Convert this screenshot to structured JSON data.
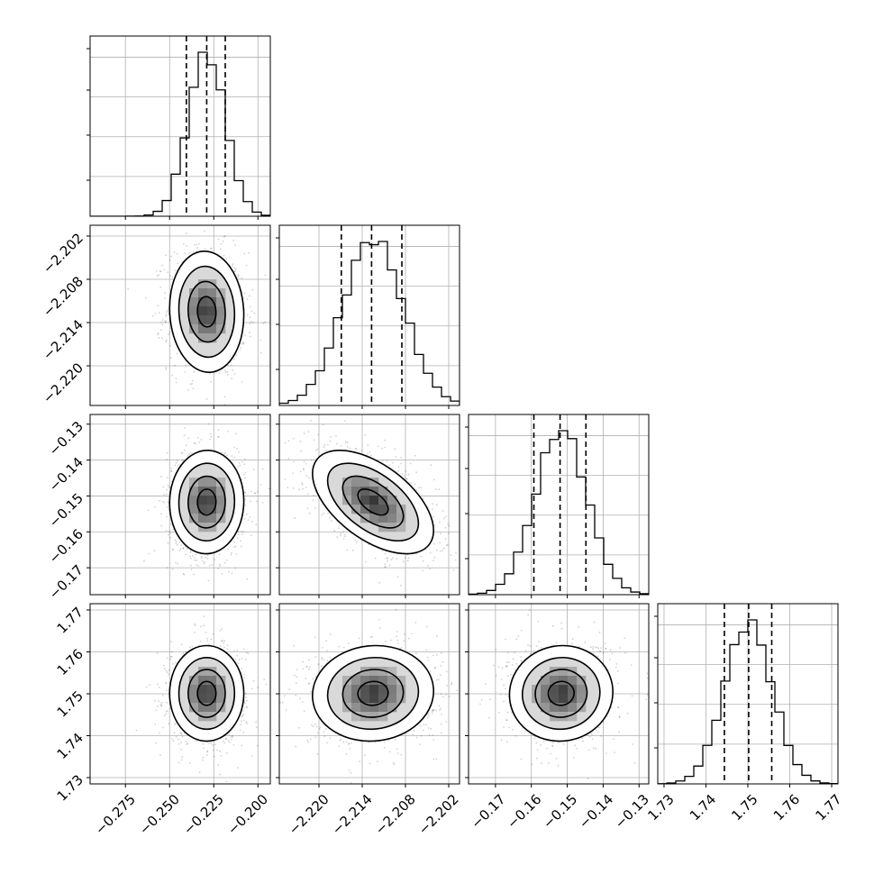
{
  "chart_data": {
    "type": "corner",
    "colors": {
      "ink": "#000000",
      "grid": "#b0b0b0",
      "background": "#ffffff"
    },
    "parameters": [
      {
        "range": [
          -0.295,
          -0.193
        ],
        "ticks": [
          -0.275,
          -0.25,
          -0.225,
          -0.2
        ],
        "tick_labels": [
          "−0.275",
          "−0.250",
          "−0.225",
          "−0.200"
        ],
        "mean": -0.229,
        "sd": 0.0105,
        "q16": -0.2405,
        "q50": -0.229,
        "q84": -0.2185
      },
      {
        "range": [
          -2.2255,
          -2.2005
        ],
        "ticks": [
          -2.22,
          -2.214,
          -2.208,
          -2.202
        ],
        "tick_labels": [
          "−2.220",
          "−2.214",
          "−2.208",
          "−2.202"
        ],
        "mean": -2.2125,
        "sd": 0.0042,
        "q16": -2.2169,
        "q50": -2.2127,
        "q84": -2.2085
      },
      {
        "range": [
          -0.1775,
          -0.1273
        ],
        "ticks": [
          -0.17,
          -0.16,
          -0.15,
          -0.14,
          -0.13
        ],
        "tick_labels": [
          "−0.17",
          "−0.16",
          "−0.15",
          "−0.14",
          "−0.13"
        ],
        "mean": -0.1517,
        "sd": 0.0072,
        "q16": -0.1593,
        "q50": -0.152,
        "q84": -0.1448
      },
      {
        "range": [
          1.7285,
          1.7715
        ],
        "ticks": [
          1.73,
          1.74,
          1.75,
          1.76,
          1.77
        ],
        "tick_labels": [
          "1.73",
          "1.74",
          "1.75",
          "1.76",
          "1.77"
        ],
        "mean": 1.7501,
        "sd": 0.0057,
        "q16": 1.7444,
        "q50": 1.7502,
        "q84": 1.7557
      }
    ],
    "correlations": [
      {
        "pair": [
          1,
          0
        ],
        "rho": -0.06
      },
      {
        "pair": [
          2,
          0
        ],
        "rho": 0.02
      },
      {
        "pair": [
          2,
          1
        ],
        "rho": -0.55
      },
      {
        "pair": [
          3,
          0
        ],
        "rho": 0.0
      },
      {
        "pair": [
          3,
          1
        ],
        "rho": 0.05
      },
      {
        "pair": [
          3,
          2
        ],
        "rho": 0.03
      }
    ],
    "contour_levels": [
      0.5,
      1.0,
      1.5,
      2.0
    ],
    "histogram_bins": 20,
    "quantiles": [
      0.16,
      0.5,
      0.84
    ]
  }
}
